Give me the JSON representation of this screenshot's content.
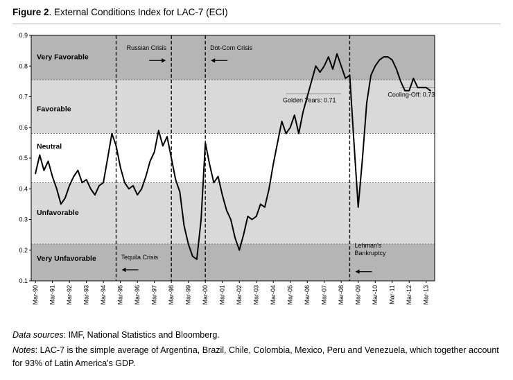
{
  "title": {
    "prefix": "Figure 2",
    "rest": ". External Conditions Index for LAC-7 (ECI)"
  },
  "footer": {
    "sources_label": "Data sources",
    "sources_text": ": IMF, National Statistics and Bloomberg.",
    "notes_label": "Notes",
    "notes_text": ": LAC-7 is the simple average of Argentina, Brazil, Chile, Colombia, Mexico, Peru and Venezuela, which together account for 93% of Latin America's GDP."
  },
  "chart_data": {
    "type": "line",
    "title": "External Conditions Index for LAC-7 (ECI)",
    "frequency": "quarterly",
    "x_tick_labels": [
      "Mar-90",
      "Mar-91",
      "Mar-92",
      "Mar-93",
      "Mar-94",
      "Mar-95",
      "Mar-96",
      "Mar-97",
      "Mar-98",
      "Mar-99",
      "Mar-00",
      "Mar-01",
      "Mar-02",
      "Mar-03",
      "Mar-04",
      "Mar-05",
      "Mar-06",
      "Mar-07",
      "Mar-08",
      "Mar-09",
      "Mar-10",
      "Mar-11",
      "Mar-12",
      "Mar-13"
    ],
    "points_per_tick": 4,
    "ylim": [
      0.1,
      0.9
    ],
    "y_ticks": [
      0.1,
      0.2,
      0.3,
      0.4,
      0.5,
      0.6,
      0.7,
      0.8,
      0.9
    ],
    "grid": "horizontal-dashed-at-band-boundaries",
    "legend_position": "none",
    "line_color": "#000000",
    "series": [
      {
        "name": "ECI",
        "start": "Mar-90",
        "values": [
          0.45,
          0.51,
          0.46,
          0.49,
          0.44,
          0.4,
          0.35,
          0.37,
          0.41,
          0.44,
          0.46,
          0.42,
          0.43,
          0.4,
          0.38,
          0.41,
          0.42,
          0.5,
          0.58,
          0.54,
          0.47,
          0.42,
          0.4,
          0.41,
          0.38,
          0.4,
          0.44,
          0.49,
          0.52,
          0.59,
          0.54,
          0.57,
          0.5,
          0.43,
          0.39,
          0.28,
          0.22,
          0.18,
          0.17,
          0.3,
          0.55,
          0.48,
          0.42,
          0.44,
          0.38,
          0.33,
          0.3,
          0.24,
          0.2,
          0.25,
          0.31,
          0.3,
          0.31,
          0.35,
          0.34,
          0.4,
          0.48,
          0.55,
          0.62,
          0.58,
          0.6,
          0.64,
          0.58,
          0.65,
          0.7,
          0.75,
          0.8,
          0.78,
          0.8,
          0.83,
          0.79,
          0.84,
          0.8,
          0.76,
          0.77,
          0.55,
          0.34,
          0.5,
          0.68,
          0.77,
          0.8,
          0.82,
          0.83,
          0.83,
          0.82,
          0.79,
          0.75,
          0.72,
          0.72,
          0.76,
          0.73,
          0.73,
          0.73,
          0.72
        ]
      }
    ],
    "bands": [
      {
        "label": "Very Favorable",
        "from": 0.755,
        "to": 0.9,
        "color": "#b5b5b5",
        "label_y": 0.822
      },
      {
        "label": "Favorable",
        "from": 0.58,
        "to": 0.755,
        "color": "#d9d9d9",
        "label_y": 0.652
      },
      {
        "label": "Neutral",
        "from": 0.42,
        "to": 0.58,
        "color": "#ffffff",
        "label_y": 0.53
      },
      {
        "label": "Unfavorable",
        "from": 0.22,
        "to": 0.42,
        "color": "#d9d9d9",
        "label_y": 0.315
      },
      {
        "label": "Very Unfavorable",
        "from": 0.1,
        "to": 0.22,
        "color": "#b5b5b5",
        "label_y": 0.165
      }
    ],
    "events": [
      {
        "label": "Tequila Crisis",
        "x_index": 19,
        "side": "right",
        "label_y": 0.17,
        "arrow_y": 0.136,
        "arrow": "left"
      },
      {
        "label": "Russian Crisis",
        "x_index": 32,
        "side": "left",
        "label_y": 0.852,
        "arrow_y": 0.818,
        "arrow": "right"
      },
      {
        "label": "Dot-Com Crisis",
        "x_index": 40,
        "side": "right",
        "label_y": 0.852,
        "arrow_y": 0.818,
        "arrow": "left"
      },
      {
        "label": "Lehman's Bankruptcy",
        "label_lines": [
          "Lehman's",
          "Bankruptcy"
        ],
        "x_index": 74,
        "side": "right",
        "label_y": 0.208,
        "arrow_y": 0.13,
        "arrow": "left"
      }
    ],
    "reference_lines": [
      {
        "label": "Golden Years: 0.71",
        "value": 0.71,
        "from_index": 59,
        "to_index": 72,
        "label_x_index": 64.5,
        "label_y": 0.682
      },
      {
        "label": "Cooling-Off: 0.73",
        "value": 0.73,
        "from_index": 86,
        "to_index": 94,
        "label_x_index": 88.5,
        "label_y": 0.7
      }
    ]
  }
}
